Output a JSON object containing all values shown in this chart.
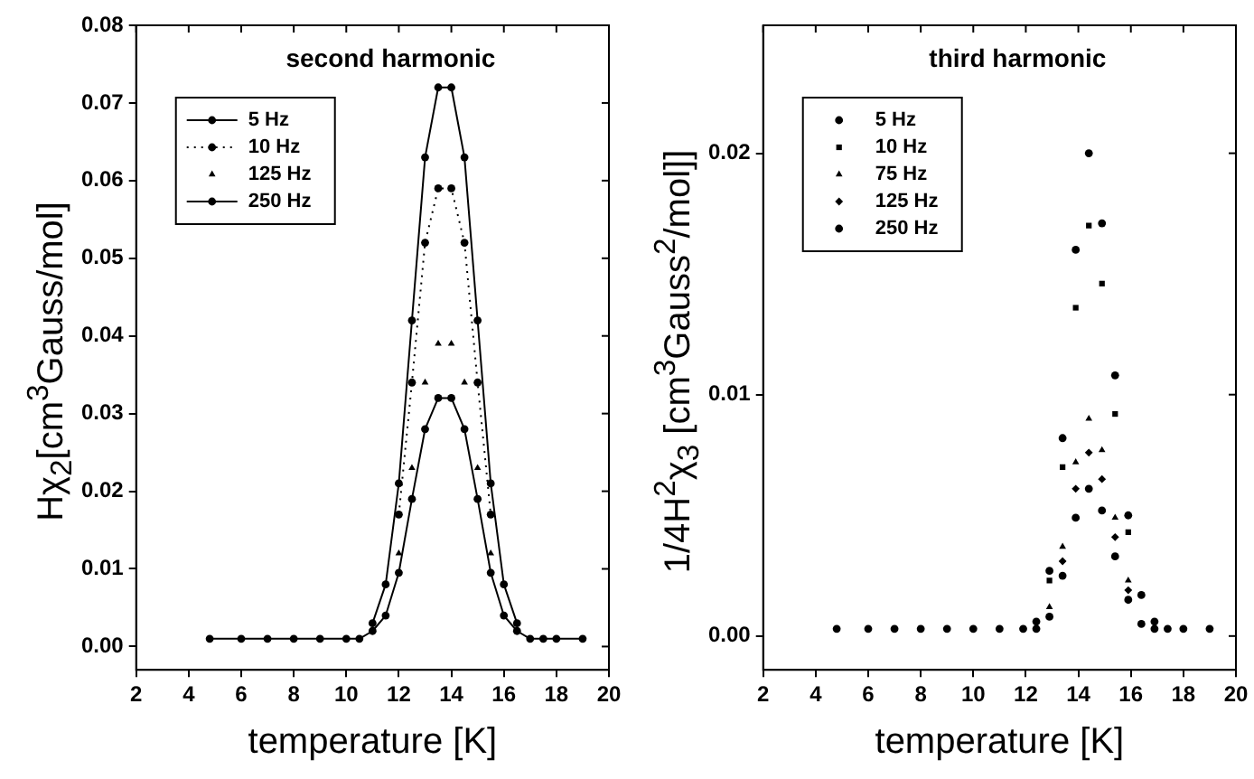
{
  "chart_data": [
    {
      "type": "line",
      "title": "second harmonic",
      "xlabel": "temperature [K]",
      "ylabel": "Hχ$_{2}$[cm$^{3}$Gauss/mol]",
      "x": [
        4.8,
        6,
        7,
        8,
        9,
        10,
        10.5,
        11,
        11.5,
        12,
        12.5,
        13,
        13.5,
        14,
        14.5,
        15,
        15.5,
        16,
        16.5,
        17,
        17.5,
        18,
        19
      ],
      "xlim": [
        2,
        20
      ],
      "xticks": [
        2,
        4,
        6,
        8,
        10,
        12,
        14,
        16,
        18,
        20
      ],
      "ylim": [
        -0.003,
        0.08
      ],
      "yticks": [
        {
          "value": 0,
          "label": "0.00"
        },
        {
          "value": 0.01,
          "label": "0.01"
        },
        {
          "value": 0.02,
          "label": "0.02"
        },
        {
          "value": 0.03,
          "label": "0.03"
        },
        {
          "value": 0.04,
          "label": "0.04"
        },
        {
          "value": 0.05,
          "label": "0.05"
        },
        {
          "value": 0.06,
          "label": "0.06"
        },
        {
          "value": 0.07,
          "label": "0.07"
        },
        {
          "value": 0.08,
          "label": "0.08"
        }
      ],
      "legend": "top left",
      "grid": false,
      "series": [
        {
          "name": "5 Hz",
          "type": "line",
          "marker": "circle",
          "line_style": "solid",
          "color": "#000000",
          "values": [
            null,
            null,
            null,
            null,
            null,
            null,
            null,
            0.003,
            0.008,
            0.021,
            0.042,
            0.063,
            0.072,
            0.072,
            0.063,
            0.042,
            0.021,
            0.008,
            0.003,
            null,
            null,
            null,
            null
          ]
        },
        {
          "name": "10 Hz",
          "type": "line",
          "marker": "circle",
          "line_style": "dotted",
          "color": "#000000",
          "values": [
            null,
            null,
            null,
            null,
            null,
            null,
            null,
            null,
            null,
            0.017,
            0.034,
            0.052,
            0.059,
            0.059,
            0.052,
            0.034,
            0.017,
            null,
            null,
            null,
            null,
            null,
            null
          ]
        },
        {
          "name": "125 Hz",
          "type": "scatter",
          "marker": "triangle",
          "color": "#000000",
          "values": [
            null,
            null,
            null,
            null,
            null,
            null,
            null,
            null,
            null,
            0.012,
            0.023,
            0.034,
            0.039,
            0.039,
            0.034,
            0.023,
            0.012,
            null,
            null,
            null,
            null,
            null,
            null
          ]
        },
        {
          "name": "250 Hz",
          "type": "line",
          "marker": "circle",
          "line_style": "solid",
          "color": "#000000",
          "values": [
            0.001,
            0.001,
            0.001,
            0.001,
            0.001,
            0.001,
            0.001,
            0.002,
            0.004,
            0.0095,
            0.019,
            0.028,
            0.032,
            0.032,
            0.028,
            0.019,
            0.0095,
            0.004,
            0.002,
            0.001,
            0.001,
            0.001,
            0.001
          ]
        }
      ]
    },
    {
      "type": "scatter",
      "title": "third harmonic",
      "xlabel": "temperature [K]",
      "ylabel": "1/4H$^{2}$χ$_{3}$ [cm$^{3}$Gauss$^{2}$/mol]]",
      "x": [
        4.8,
        6,
        7,
        8,
        9,
        10,
        11,
        11.9,
        12.4,
        12.9,
        13.4,
        13.9,
        14.4,
        14.9,
        15.4,
        15.9,
        16.4,
        16.9,
        17.4,
        18,
        19
      ],
      "xlim": [
        2,
        20
      ],
      "xticks": [
        2,
        4,
        6,
        8,
        10,
        12,
        14,
        16,
        18,
        20
      ],
      "ylim": [
        -0.0014,
        0.0253
      ],
      "yticks": [
        {
          "value": 0,
          "label": "0.00"
        },
        {
          "value": 0.01,
          "label": "0.01"
        },
        {
          "value": 0.02,
          "label": "0.02"
        }
      ],
      "legend": "top left",
      "grid": false,
      "series": [
        {
          "name": "5 Hz",
          "marker": "circle",
          "color": "#000000",
          "values": [
            null,
            null,
            null,
            null,
            null,
            null,
            null,
            null,
            0.0006,
            0.0027,
            0.0082,
            0.016,
            0.02,
            0.0171,
            0.0108,
            0.005,
            0.0017,
            0.0006,
            null,
            null,
            null
          ]
        },
        {
          "name": "10 Hz",
          "marker": "square",
          "color": "#000000",
          "values": [
            null,
            null,
            null,
            null,
            null,
            null,
            null,
            null,
            null,
            0.0023,
            0.007,
            0.0136,
            0.017,
            0.0146,
            0.0092,
            0.0043,
            null,
            null,
            null,
            null,
            null
          ]
        },
        {
          "name": "75 Hz",
          "marker": "triangle",
          "color": "#000000",
          "values": [
            null,
            null,
            null,
            null,
            null,
            null,
            null,
            null,
            null,
            0.0012,
            0.0037,
            0.0072,
            0.009,
            0.0077,
            0.0049,
            0.0023,
            null,
            null,
            null,
            null,
            null
          ]
        },
        {
          "name": "125 Hz",
          "marker": "diamond",
          "color": "#000000",
          "values": [
            null,
            null,
            null,
            null,
            null,
            null,
            null,
            null,
            null,
            null,
            0.0031,
            0.0061,
            0.0076,
            0.0065,
            0.0041,
            0.0019,
            null,
            null,
            null,
            null,
            null
          ]
        },
        {
          "name": "250 Hz",
          "marker": "circle",
          "color": "#000000",
          "values": [
            0.0003,
            0.0003,
            0.0003,
            0.0003,
            0.0003,
            0.0003,
            0.0003,
            0.0003,
            0.0003,
            0.0008,
            0.0025,
            0.0049,
            0.0061,
            0.0052,
            0.0033,
            0.0015,
            0.0005,
            0.0003,
            0.0003,
            0.0003,
            0.0003
          ]
        }
      ]
    }
  ]
}
